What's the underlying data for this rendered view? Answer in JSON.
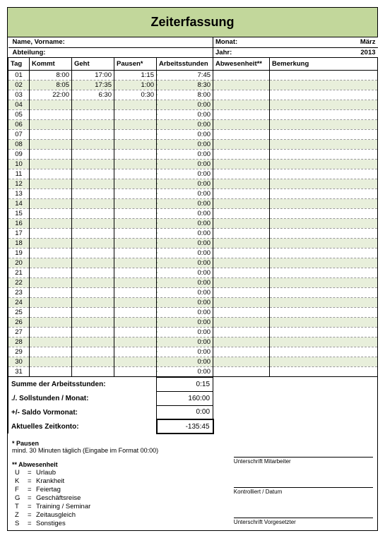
{
  "title": "Zeiterfassung",
  "header": {
    "name_label": "Name, Vorname:",
    "abteilung_label": "Abteilung:",
    "monat_label": "Monat:",
    "monat_value": "März",
    "jahr_label": "Jahr:",
    "jahr_value": "2013"
  },
  "columns": {
    "tag": "Tag",
    "kommt": "Kommt",
    "geht": "Geht",
    "pausen": "Pausen*",
    "arbeit": "Arbeitsstunden",
    "abw": "Abwesenheit**",
    "bem": "Bemerkung"
  },
  "col_widths": {
    "tag": 30,
    "kommt": 60,
    "geht": 60,
    "pausen": 60,
    "arbeit": 80,
    "abw": 80,
    "bem": 153
  },
  "rows": [
    {
      "tag": "01",
      "kommt": "8:00",
      "geht": "17:00",
      "pausen": "1:15",
      "arbeit": "7:45",
      "abw": "",
      "bem": ""
    },
    {
      "tag": "02",
      "kommt": "8:05",
      "geht": "17:35",
      "pausen": "1:00",
      "arbeit": "8:30",
      "abw": "",
      "bem": ""
    },
    {
      "tag": "03",
      "kommt": "22:00",
      "geht": "6:30",
      "pausen": "0:30",
      "arbeit": "8:00",
      "abw": "",
      "bem": ""
    },
    {
      "tag": "04",
      "kommt": "",
      "geht": "",
      "pausen": "",
      "arbeit": "0:00",
      "abw": "",
      "bem": ""
    },
    {
      "tag": "05",
      "kommt": "",
      "geht": "",
      "pausen": "",
      "arbeit": "0:00",
      "abw": "",
      "bem": ""
    },
    {
      "tag": "06",
      "kommt": "",
      "geht": "",
      "pausen": "",
      "arbeit": "0:00",
      "abw": "",
      "bem": ""
    },
    {
      "tag": "07",
      "kommt": "",
      "geht": "",
      "pausen": "",
      "arbeit": "0:00",
      "abw": "",
      "bem": ""
    },
    {
      "tag": "08",
      "kommt": "",
      "geht": "",
      "pausen": "",
      "arbeit": "0:00",
      "abw": "",
      "bem": ""
    },
    {
      "tag": "09",
      "kommt": "",
      "geht": "",
      "pausen": "",
      "arbeit": "0:00",
      "abw": "",
      "bem": ""
    },
    {
      "tag": "10",
      "kommt": "",
      "geht": "",
      "pausen": "",
      "arbeit": "0:00",
      "abw": "",
      "bem": ""
    },
    {
      "tag": "11",
      "kommt": "",
      "geht": "",
      "pausen": "",
      "arbeit": "0:00",
      "abw": "",
      "bem": ""
    },
    {
      "tag": "12",
      "kommt": "",
      "geht": "",
      "pausen": "",
      "arbeit": "0:00",
      "abw": "",
      "bem": ""
    },
    {
      "tag": "13",
      "kommt": "",
      "geht": "",
      "pausen": "",
      "arbeit": "0:00",
      "abw": "",
      "bem": ""
    },
    {
      "tag": "14",
      "kommt": "",
      "geht": "",
      "pausen": "",
      "arbeit": "0:00",
      "abw": "",
      "bem": ""
    },
    {
      "tag": "15",
      "kommt": "",
      "geht": "",
      "pausen": "",
      "arbeit": "0:00",
      "abw": "",
      "bem": ""
    },
    {
      "tag": "16",
      "kommt": "",
      "geht": "",
      "pausen": "",
      "arbeit": "0:00",
      "abw": "",
      "bem": ""
    },
    {
      "tag": "17",
      "kommt": "",
      "geht": "",
      "pausen": "",
      "arbeit": "0:00",
      "abw": "",
      "bem": ""
    },
    {
      "tag": "18",
      "kommt": "",
      "geht": "",
      "pausen": "",
      "arbeit": "0:00",
      "abw": "",
      "bem": ""
    },
    {
      "tag": "19",
      "kommt": "",
      "geht": "",
      "pausen": "",
      "arbeit": "0:00",
      "abw": "",
      "bem": ""
    },
    {
      "tag": "20",
      "kommt": "",
      "geht": "",
      "pausen": "",
      "arbeit": "0:00",
      "abw": "",
      "bem": ""
    },
    {
      "tag": "21",
      "kommt": "",
      "geht": "",
      "pausen": "",
      "arbeit": "0:00",
      "abw": "",
      "bem": ""
    },
    {
      "tag": "22",
      "kommt": "",
      "geht": "",
      "pausen": "",
      "arbeit": "0:00",
      "abw": "",
      "bem": ""
    },
    {
      "tag": "23",
      "kommt": "",
      "geht": "",
      "pausen": "",
      "arbeit": "0:00",
      "abw": "",
      "bem": ""
    },
    {
      "tag": "24",
      "kommt": "",
      "geht": "",
      "pausen": "",
      "arbeit": "0:00",
      "abw": "",
      "bem": ""
    },
    {
      "tag": "25",
      "kommt": "",
      "geht": "",
      "pausen": "",
      "arbeit": "0:00",
      "abw": "",
      "bem": ""
    },
    {
      "tag": "26",
      "kommt": "",
      "geht": "",
      "pausen": "",
      "arbeit": "0:00",
      "abw": "",
      "bem": ""
    },
    {
      "tag": "27",
      "kommt": "",
      "geht": "",
      "pausen": "",
      "arbeit": "0:00",
      "abw": "",
      "bem": ""
    },
    {
      "tag": "28",
      "kommt": "",
      "geht": "",
      "pausen": "",
      "arbeit": "0:00",
      "abw": "",
      "bem": ""
    },
    {
      "tag": "29",
      "kommt": "",
      "geht": "",
      "pausen": "",
      "arbeit": "0:00",
      "abw": "",
      "bem": ""
    },
    {
      "tag": "30",
      "kommt": "",
      "geht": "",
      "pausen": "",
      "arbeit": "0:00",
      "abw": "",
      "bem": ""
    },
    {
      "tag": "31",
      "kommt": "",
      "geht": "",
      "pausen": "",
      "arbeit": "0:00",
      "abw": "",
      "bem": ""
    }
  ],
  "summary": [
    {
      "label": "Summe der Arbeitsstunden:",
      "value": "0:15",
      "heavy": false
    },
    {
      "label": "./. Sollstunden / Monat:",
      "value": "160:00",
      "heavy": false
    },
    {
      "label": "+/- Saldo Vormonat:",
      "value": "0:00",
      "heavy": false
    },
    {
      "label": "Aktuelles Zeitkonto:",
      "value": "-135:45",
      "heavy": true
    }
  ],
  "footnotes": {
    "pausen_title": "* Pausen",
    "pausen_text": "mind. 30 Minuten täglich (Eingabe im Format 00:00)",
    "abw_title": "** Abwesenheit",
    "legend": [
      {
        "k": "U",
        "v": "Urlaub"
      },
      {
        "k": "K",
        "v": "Krankheit"
      },
      {
        "k": "F",
        "v": "Feiertag"
      },
      {
        "k": "G",
        "v": "Geschäftsreise"
      },
      {
        "k": "T",
        "v": "Training / Seminar"
      },
      {
        "k": "Z",
        "v": "Zeitausgleich"
      },
      {
        "k": "S",
        "v": "Sonstiges"
      }
    ],
    "sig1": "Unterschrift Mitarbeiter",
    "sig2": "Kontrolliert / Datum",
    "sig3": "Unterschrift Vorgesetzter"
  },
  "colors": {
    "header_bg": "#c2d79b",
    "stripe_bg": "#e8efdb",
    "marker": "#2e7d32"
  }
}
